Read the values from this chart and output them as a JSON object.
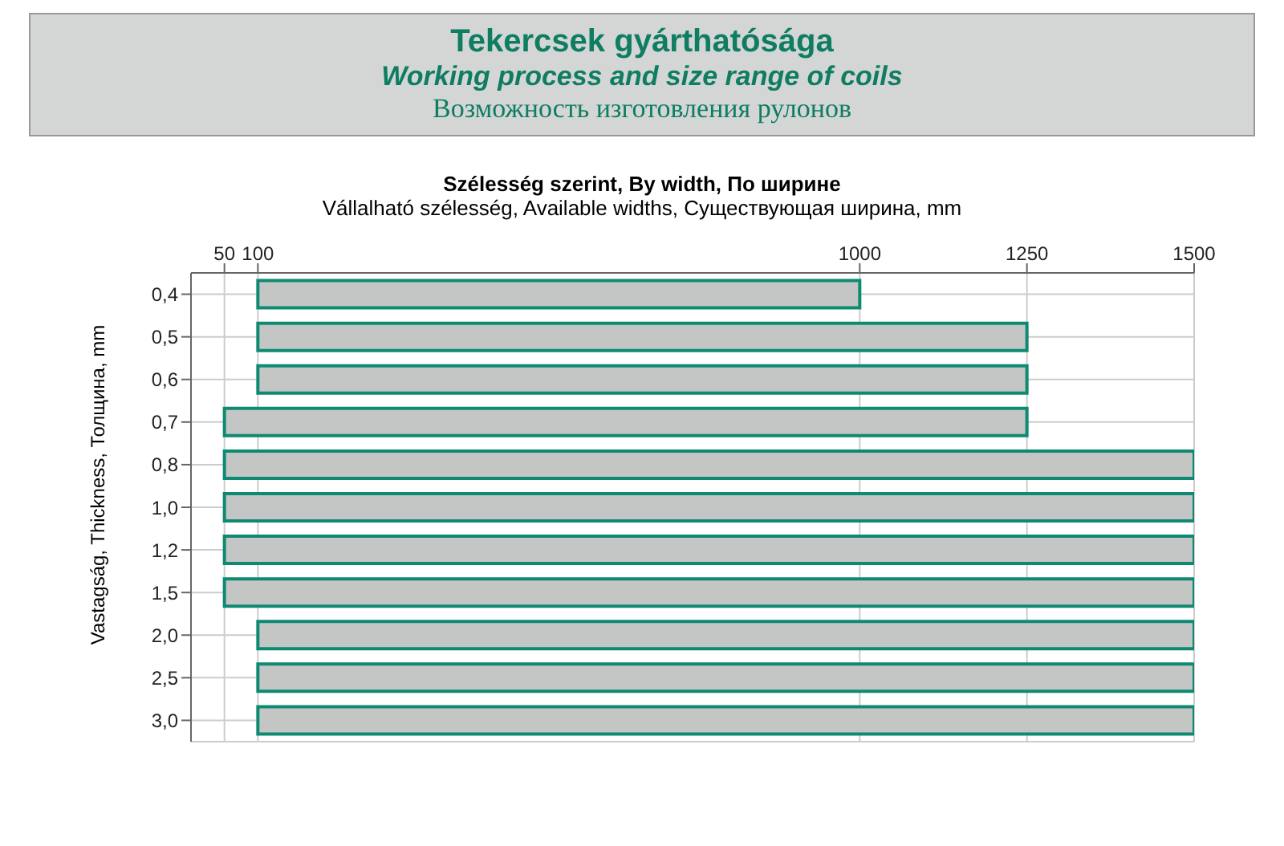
{
  "chart_data": {
    "type": "bar",
    "orientation": "horizontal",
    "title": "Tekercsek gyárthatósága",
    "subtitle": "Working process and size range of coils",
    "annotations": [
      "Возможность изготовления рулонов",
      "Szélesség szerint, By width, По ширине"
    ],
    "xlabel": "Vállalható szélesség, Available widths, Существующая ширина, mm",
    "ylabel": "Vastagság, Thickness, Толщина, mm",
    "categories": [
      "0,4",
      "0,5",
      "0,6",
      "0,7",
      "0,8",
      "1,0",
      "1,2",
      "1,5",
      "2,0",
      "2,5",
      "3,0"
    ],
    "base": [
      100,
      100,
      100,
      50,
      50,
      50,
      50,
      50,
      100,
      100,
      100
    ],
    "values": [
      900,
      1150,
      1150,
      1200,
      1450,
      1450,
      1450,
      1450,
      1400,
      1400,
      1400
    ],
    "color": "#c4c6c5",
    "xlim": [
      0,
      1500
    ],
    "xticks": [
      50,
      100,
      1000,
      1250,
      1500
    ],
    "grid": true,
    "legend": false
  }
}
